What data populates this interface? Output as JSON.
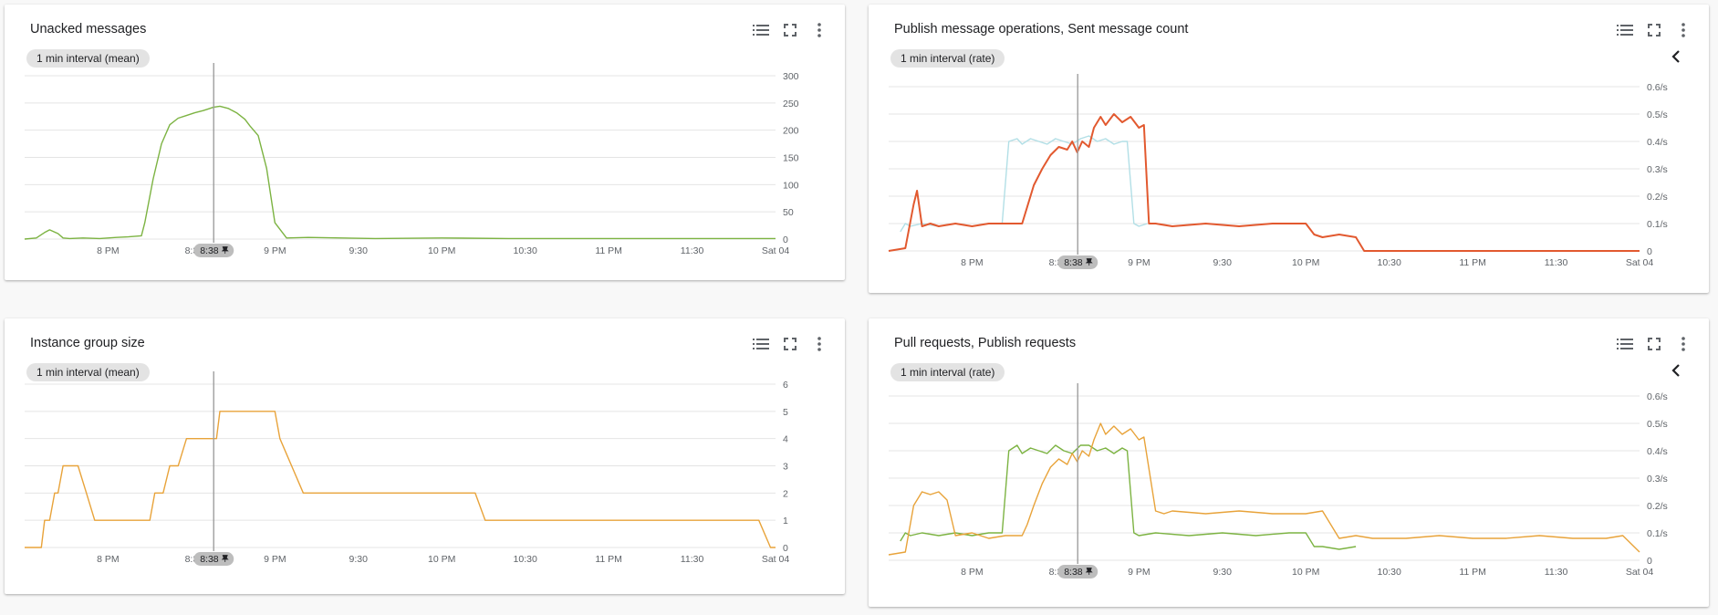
{
  "cards": [
    {
      "title": "Unacked messages",
      "chip": "1 min interval (mean)",
      "has_back": false
    },
    {
      "title": "Publish message operations, Sent message count",
      "chip": "1 min interval (rate)",
      "has_back": true
    },
    {
      "title": "Instance group size",
      "chip": "1 min interval (mean)",
      "has_back": false
    },
    {
      "title": "Pull requests, Publish requests",
      "chip": "1 min interval (rate)",
      "has_back": true
    }
  ],
  "icons": {
    "legend": "legend-list-icon",
    "fullscreen": "fullscreen-icon",
    "more": "more-vert-icon",
    "back": "chevron-left-icon",
    "pin": "pin-icon"
  },
  "cursor_label": "8:38",
  "chart_data": [
    {
      "type": "line",
      "title": "Unacked messages",
      "x_unit": "hours (19.5 = 7:30 PM, 24 = Sat 04 00:00)",
      "xlim": [
        19.5,
        24
      ],
      "x_ticks": [
        20,
        20.5,
        21,
        21.5,
        22,
        22.5,
        23,
        23.5,
        24
      ],
      "x_tick_labels": [
        "8 PM",
        "8:3",
        "9 PM",
        "9:30",
        "10 PM",
        "10:30",
        "11 PM",
        "11:30",
        "Sat 04"
      ],
      "y_ticks": [
        0,
        50,
        100,
        150,
        200,
        250,
        300
      ],
      "y_tick_labels": [
        "0",
        "50",
        "100",
        "150",
        "200",
        "250",
        "300"
      ],
      "ylim": [
        0,
        300
      ],
      "cursor_x": 20.633,
      "series": [
        {
          "color": "#7cb342",
          "x": [
            19.5,
            19.57,
            19.62,
            19.65,
            19.7,
            19.73,
            19.77,
            19.85,
            19.95,
            20.05,
            20.12,
            20.2,
            20.22,
            20.27,
            20.32,
            20.37,
            20.42,
            20.47,
            20.52,
            20.57,
            20.6,
            20.63,
            20.67,
            20.72,
            20.77,
            20.82,
            20.85,
            20.9,
            20.95,
            21.0,
            21.07,
            21.2,
            21.6,
            22.0,
            22.4,
            22.7,
            24.0
          ],
          "y": [
            0,
            2,
            12,
            17,
            10,
            2,
            1,
            2,
            1,
            3,
            4,
            6,
            30,
            110,
            175,
            210,
            222,
            227,
            232,
            236,
            239,
            242,
            244,
            240,
            232,
            220,
            208,
            190,
            130,
            30,
            2,
            3,
            1,
            2,
            1,
            1,
            1
          ]
        }
      ]
    },
    {
      "type": "line",
      "title": "Publish message operations, Sent message count",
      "xlim": [
        19.5,
        24
      ],
      "x_ticks": [
        20,
        20.5,
        21,
        21.5,
        22,
        22.5,
        23,
        23.5,
        24
      ],
      "x_tick_labels": [
        "8 PM",
        "8:3",
        "9 PM",
        "9:30",
        "10 PM",
        "10:30",
        "11 PM",
        "11:30",
        "Sat 04"
      ],
      "y_ticks": [
        0,
        0.1,
        0.2,
        0.3,
        0.4,
        0.5,
        0.6
      ],
      "y_tick_labels": [
        "0",
        "0.1/s",
        "0.2/s",
        "0.3/s",
        "0.4/s",
        "0.5/s",
        "0.6/s"
      ],
      "ylim": [
        0,
        0.6
      ],
      "cursor_x": 20.633,
      "series": [
        {
          "color": "#b2dfe6",
          "x": [
            19.57,
            19.6,
            19.63,
            19.7,
            19.8,
            19.9,
            20.0,
            20.1,
            20.18,
            20.22,
            20.27,
            20.3,
            20.35,
            20.4,
            20.45,
            20.5,
            20.55,
            20.6,
            20.65,
            20.7,
            20.75,
            20.8,
            20.85,
            20.9,
            20.93,
            20.97,
            21.0,
            21.05
          ],
          "y": [
            0.07,
            0.1,
            0.09,
            0.1,
            0.09,
            0.1,
            0.09,
            0.1,
            0.1,
            0.4,
            0.41,
            0.39,
            0.41,
            0.4,
            0.39,
            0.41,
            0.4,
            0.39,
            0.41,
            0.42,
            0.4,
            0.41,
            0.39,
            0.4,
            0.4,
            0.1,
            0.09,
            0.1
          ]
        },
        {
          "color": "#e2592f",
          "x": [
            19.5,
            19.6,
            19.65,
            19.67,
            19.7,
            19.75,
            19.8,
            19.9,
            20.0,
            20.1,
            20.2,
            20.3,
            20.33,
            20.37,
            20.42,
            20.47,
            20.52,
            20.57,
            20.6,
            20.63,
            20.66,
            20.7,
            20.73,
            20.77,
            20.8,
            20.85,
            20.9,
            20.95,
            21.0,
            21.03,
            21.06,
            21.1,
            21.2,
            21.4,
            21.6,
            21.8,
            22.0,
            22.05,
            22.1,
            22.2,
            22.3,
            22.35,
            24.0
          ],
          "y": [
            0.0,
            0.01,
            0.17,
            0.22,
            0.09,
            0.1,
            0.09,
            0.1,
            0.09,
            0.1,
            0.1,
            0.1,
            0.16,
            0.24,
            0.3,
            0.35,
            0.38,
            0.37,
            0.4,
            0.36,
            0.4,
            0.38,
            0.45,
            0.49,
            0.46,
            0.5,
            0.47,
            0.49,
            0.45,
            0.46,
            0.1,
            0.1,
            0.09,
            0.1,
            0.09,
            0.1,
            0.1,
            0.06,
            0.05,
            0.06,
            0.05,
            0.0,
            0.0
          ]
        }
      ]
    },
    {
      "type": "line",
      "title": "Instance group size",
      "xlim": [
        19.5,
        24
      ],
      "x_ticks": [
        20,
        20.5,
        21,
        21.5,
        22,
        22.5,
        23,
        23.5,
        24
      ],
      "x_tick_labels": [
        "8 PM",
        "8:3",
        "9 PM",
        "9:30",
        "10 PM",
        "10:30",
        "11 PM",
        "11:30",
        "Sat 04"
      ],
      "y_ticks": [
        0,
        1,
        2,
        3,
        4,
        5,
        6
      ],
      "y_tick_labels": [
        "0",
        "1",
        "2",
        "3",
        "4",
        "5",
        "6"
      ],
      "ylim": [
        0,
        6
      ],
      "cursor_x": 20.633,
      "series": [
        {
          "color": "#e8a33a",
          "x": [
            19.5,
            19.55,
            19.6,
            19.62,
            19.65,
            19.68,
            19.7,
            19.73,
            19.82,
            19.87,
            19.92,
            20.25,
            20.28,
            20.33,
            20.37,
            20.42,
            20.47,
            20.62,
            20.65,
            20.67,
            21.0,
            21.03,
            21.1,
            21.17,
            21.25,
            22.2,
            22.26,
            23.9,
            23.97,
            24.0
          ],
          "y": [
            0,
            0,
            0,
            1,
            1,
            2,
            2,
            3,
            3,
            2,
            1,
            1,
            2,
            2,
            3,
            3,
            4,
            4,
            4,
            5,
            5,
            4,
            3,
            2,
            2,
            2,
            1,
            1,
            0,
            0
          ]
        }
      ]
    },
    {
      "type": "line",
      "title": "Pull requests, Publish requests",
      "xlim": [
        19.5,
        24
      ],
      "x_ticks": [
        20,
        20.5,
        21,
        21.5,
        22,
        22.5,
        23,
        23.5,
        24
      ],
      "x_tick_labels": [
        "8 PM",
        "8:3",
        "9 PM",
        "9:30",
        "10 PM",
        "10:30",
        "11 PM",
        "11:30",
        "Sat 04"
      ],
      "y_ticks": [
        0,
        0.1,
        0.2,
        0.3,
        0.4,
        0.5,
        0.6
      ],
      "y_tick_labels": [
        "0",
        "0.1/s",
        "0.2/s",
        "0.3/s",
        "0.4/s",
        "0.5/s",
        "0.6/s"
      ],
      "ylim": [
        0,
        0.6
      ],
      "cursor_x": 20.633,
      "series": [
        {
          "color": "#7cb342",
          "x": [
            19.57,
            19.6,
            19.63,
            19.7,
            19.8,
            19.9,
            20.0,
            20.1,
            20.18,
            20.22,
            20.27,
            20.3,
            20.35,
            20.4,
            20.45,
            20.5,
            20.55,
            20.6,
            20.65,
            20.7,
            20.75,
            20.8,
            20.85,
            20.9,
            20.93,
            20.97,
            21.0,
            21.1,
            21.3,
            21.5,
            21.7,
            21.9,
            22.0,
            22.05,
            22.1,
            22.2,
            22.3
          ],
          "y": [
            0.07,
            0.1,
            0.09,
            0.1,
            0.09,
            0.1,
            0.09,
            0.1,
            0.1,
            0.4,
            0.42,
            0.39,
            0.41,
            0.4,
            0.39,
            0.42,
            0.4,
            0.39,
            0.42,
            0.42,
            0.4,
            0.41,
            0.39,
            0.41,
            0.4,
            0.1,
            0.09,
            0.1,
            0.09,
            0.1,
            0.09,
            0.1,
            0.1,
            0.05,
            0.05,
            0.04,
            0.05
          ]
        },
        {
          "color": "#e8a33a",
          "x": [
            19.5,
            19.6,
            19.65,
            19.7,
            19.75,
            19.8,
            19.85,
            19.9,
            20.0,
            20.1,
            20.2,
            20.3,
            20.33,
            20.37,
            20.42,
            20.47,
            20.52,
            20.57,
            20.6,
            20.63,
            20.66,
            20.7,
            20.73,
            20.77,
            20.8,
            20.85,
            20.9,
            20.95,
            21.0,
            21.03,
            21.1,
            21.15,
            21.2,
            21.4,
            21.6,
            21.8,
            22.0,
            22.1,
            22.2,
            22.3,
            22.4,
            22.6,
            22.8,
            23.0,
            23.2,
            23.4,
            23.6,
            23.8,
            23.9,
            24.0
          ],
          "y": [
            0.02,
            0.03,
            0.2,
            0.25,
            0.24,
            0.25,
            0.22,
            0.09,
            0.1,
            0.08,
            0.09,
            0.09,
            0.13,
            0.2,
            0.28,
            0.34,
            0.37,
            0.35,
            0.39,
            0.36,
            0.4,
            0.38,
            0.44,
            0.5,
            0.46,
            0.49,
            0.46,
            0.48,
            0.44,
            0.45,
            0.18,
            0.17,
            0.18,
            0.17,
            0.18,
            0.17,
            0.17,
            0.18,
            0.08,
            0.09,
            0.08,
            0.08,
            0.09,
            0.08,
            0.08,
            0.09,
            0.08,
            0.08,
            0.09,
            0.03
          ]
        }
      ]
    }
  ]
}
